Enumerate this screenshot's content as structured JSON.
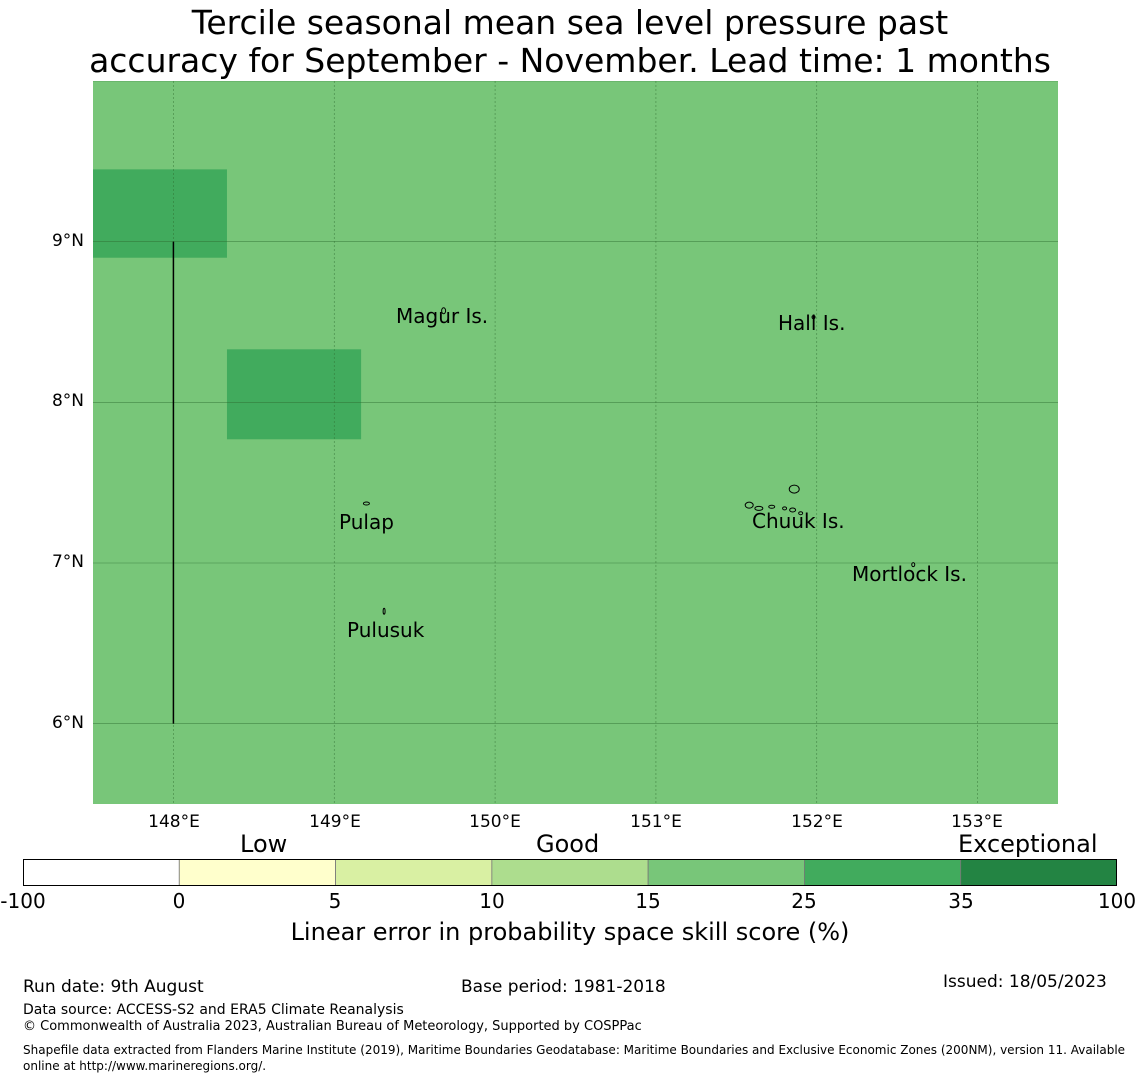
{
  "title": {
    "line1": "Tercile seasonal mean sea level pressure past",
    "line2": "accuracy for September - November. Lead time: 1 months"
  },
  "map": {
    "lat_range": [
      5.5,
      10.0
    ],
    "lon_range": [
      147.5,
      153.5
    ],
    "base_color": "#78c679",
    "highlight_color": "#41ab5d",
    "gridline_color": "#2e6b2e",
    "lat_ticks": [
      "9°N",
      "8°N",
      "7°N",
      "6°N"
    ],
    "lon_ticks": [
      "148°E",
      "149°E",
      "150°E",
      "151°E",
      "152°E",
      "153°E"
    ],
    "highlight_cells": [
      {
        "lon": [
          147.5,
          148.333
        ],
        "lat": [
          8.9,
          9.45
        ],
        "category": "25-35"
      },
      {
        "lon": [
          148.333,
          149.167
        ],
        "lat": [
          7.77,
          8.33
        ],
        "category": "25-35"
      }
    ],
    "boundary_line": {
      "lon": 148.0,
      "lat": [
        6.0,
        9.0
      ]
    },
    "places": [
      {
        "name": "Magur Is.",
        "lon": 149.68,
        "lat": 8.57
      },
      {
        "name": "Hall Is.",
        "lon": 151.98,
        "lat": 8.5
      },
      {
        "name": "Pulap",
        "lon": 149.2,
        "lat": 7.29
      },
      {
        "name": "Chuuk Is.",
        "lon": 151.85,
        "lat": 7.38
      },
      {
        "name": "Mortlock Is.",
        "lon": 152.59,
        "lat": 6.95
      },
      {
        "name": "Pulusuk",
        "lon": 149.3,
        "lat": 6.69
      }
    ]
  },
  "colorbar": {
    "categories": {
      "low": "Low",
      "good": "Good",
      "exceptional": "Exceptional"
    },
    "colors": [
      "#ffffff",
      "#ffffcc",
      "#d9f0a3",
      "#addd8e",
      "#78c679",
      "#41ab5d",
      "#238443"
    ],
    "ticks": [
      "-100",
      "0",
      "5",
      "10",
      "15",
      "25",
      "35",
      "100"
    ],
    "label": "Linear error in probability space skill score (%)"
  },
  "footer": {
    "run_date": "Run date: 9th August",
    "base_period": "Base period: 1981-2018",
    "issued": "Issued: 18/05/2023",
    "data_source": "Data source: ACCESS-S2 and ERA5 Climate Reanalysis",
    "copyright": "© Commonwealth of Australia 2023, Australian Bureau of Meteorology, Supported by COSPPac",
    "shapefile": "Shapefile data extracted from Flanders Marine Institute (2019), Maritime Boundaries Geodatabase: Maritime Boundaries and Exclusive Economic Zones (200NM), version 11. Available online at http://www.marineregions.org/."
  }
}
